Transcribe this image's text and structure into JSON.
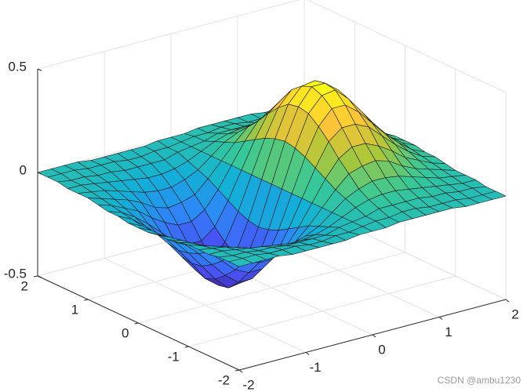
{
  "chart_data": {
    "type": "surface",
    "x": [
      -2,
      -1.8,
      -1.6,
      -1.4,
      -1.2,
      -1,
      -0.8,
      -0.6,
      -0.4,
      -0.2,
      0,
      0.2,
      0.4,
      0.6,
      0.8,
      1,
      1.2,
      1.4,
      1.6,
      1.8,
      2
    ],
    "y": [
      -2,
      -1.8,
      -1.6,
      -1.4,
      -1.2,
      -1,
      -0.8,
      -0.6,
      -0.4,
      -0.2,
      0,
      0.2,
      0.4,
      0.6,
      0.8,
      1,
      1.2,
      1.4,
      1.6,
      1.8,
      2
    ],
    "z": [
      [
        0,
        0,
        0,
        0,
        -0.01,
        -0.01,
        -0.01,
        -0.01,
        -0.01,
        0,
        0,
        0,
        0.01,
        0.01,
        0.01,
        0.01,
        0.01,
        0,
        0,
        0,
        0
      ],
      [
        0,
        0,
        0,
        -0.01,
        -0.01,
        -0.01,
        -0.02,
        -0.02,
        -0.01,
        -0.01,
        0,
        0.01,
        0.01,
        0.02,
        0.02,
        0.01,
        0.01,
        0.01,
        0,
        0,
        0
      ],
      [
        0,
        -0.01,
        -0.01,
        -0.02,
        -0.02,
        -0.03,
        -0.03,
        -0.03,
        -0.03,
        -0.01,
        0,
        0.01,
        0.03,
        0.03,
        0.03,
        0.03,
        0.02,
        0.02,
        0.01,
        0.01,
        0
      ],
      [
        -0.01,
        -0.01,
        -0.02,
        -0.03,
        -0.04,
        -0.05,
        -0.06,
        -0.06,
        -0.05,
        -0.03,
        0,
        0.03,
        0.05,
        0.06,
        0.06,
        0.05,
        0.04,
        0.03,
        0.02,
        0.01,
        0.01
      ],
      [
        -0.01,
        -0.02,
        -0.03,
        -0.05,
        -0.07,
        -0.09,
        -0.1,
        -0.1,
        -0.08,
        -0.05,
        0,
        0.05,
        0.08,
        0.1,
        0.1,
        0.09,
        0.07,
        0.05,
        0.03,
        0.02,
        0.01
      ],
      [
        -0.01,
        -0.03,
        -0.05,
        -0.07,
        -0.1,
        -0.14,
        -0.16,
        -0.15,
        -0.13,
        -0.07,
        0,
        0.07,
        0.13,
        0.15,
        0.16,
        0.14,
        0.1,
        0.07,
        0.05,
        0.03,
        0.01
      ],
      [
        -0.02,
        -0.04,
        -0.07,
        -0.1,
        -0.15,
        -0.19,
        -0.22,
        -0.22,
        -0.18,
        -0.1,
        0,
        0.1,
        0.18,
        0.22,
        0.22,
        0.19,
        0.15,
        0.1,
        0.07,
        0.04,
        0.02
      ],
      [
        -0.03,
        -0.05,
        -0.09,
        -0.14,
        -0.2,
        -0.26,
        -0.29,
        -0.29,
        -0.24,
        -0.13,
        0,
        0.13,
        0.24,
        0.29,
        0.29,
        0.26,
        0.2,
        0.14,
        0.09,
        0.05,
        0.03
      ],
      [
        -0.03,
        -0.06,
        -0.11,
        -0.17,
        -0.24,
        -0.31,
        -0.36,
        -0.36,
        -0.29,
        -0.16,
        0,
        0.16,
        0.29,
        0.36,
        0.36,
        0.31,
        0.24,
        0.17,
        0.11,
        0.06,
        0.03
      ],
      [
        -0.04,
        -0.07,
        -0.12,
        -0.19,
        -0.27,
        -0.35,
        -0.41,
        -0.4,
        -0.33,
        -0.18,
        0,
        0.18,
        0.33,
        0.4,
        0.41,
        0.35,
        0.27,
        0.19,
        0.12,
        0.07,
        0.04
      ],
      [
        -0.04,
        -0.07,
        -0.12,
        -0.2,
        -0.28,
        -0.37,
        -0.42,
        -0.42,
        -0.34,
        -0.19,
        0,
        0.19,
        0.34,
        0.42,
        0.42,
        0.37,
        0.28,
        0.2,
        0.12,
        0.07,
        0.04
      ],
      [
        -0.04,
        -0.07,
        -0.12,
        -0.19,
        -0.27,
        -0.35,
        -0.41,
        -0.4,
        -0.33,
        -0.18,
        0,
        0.18,
        0.33,
        0.4,
        0.41,
        0.35,
        0.27,
        0.19,
        0.12,
        0.07,
        0.04
      ],
      [
        -0.03,
        -0.06,
        -0.11,
        -0.17,
        -0.24,
        -0.31,
        -0.36,
        -0.36,
        -0.29,
        -0.16,
        0,
        0.16,
        0.29,
        0.36,
        0.36,
        0.31,
        0.24,
        0.17,
        0.11,
        0.06,
        0.03
      ],
      [
        -0.03,
        -0.05,
        -0.09,
        -0.14,
        -0.2,
        -0.26,
        -0.29,
        -0.29,
        -0.24,
        -0.13,
        0,
        0.13,
        0.24,
        0.29,
        0.29,
        0.26,
        0.2,
        0.14,
        0.09,
        0.05,
        0.03
      ],
      [
        -0.02,
        -0.04,
        -0.07,
        -0.1,
        -0.15,
        -0.19,
        -0.22,
        -0.22,
        -0.18,
        -0.1,
        0,
        0.1,
        0.18,
        0.22,
        0.22,
        0.19,
        0.15,
        0.1,
        0.07,
        0.04,
        0.02
      ],
      [
        -0.01,
        -0.03,
        -0.05,
        -0.07,
        -0.1,
        -0.14,
        -0.16,
        -0.15,
        -0.13,
        -0.07,
        0,
        0.07,
        0.13,
        0.15,
        0.16,
        0.14,
        0.1,
        0.07,
        0.05,
        0.03,
        0.01
      ],
      [
        -0.01,
        -0.02,
        -0.03,
        -0.05,
        -0.07,
        -0.09,
        -0.1,
        -0.1,
        -0.08,
        -0.05,
        0,
        0.05,
        0.08,
        0.1,
        0.1,
        0.09,
        0.07,
        0.05,
        0.03,
        0.02,
        0.01
      ],
      [
        -0.01,
        -0.01,
        -0.02,
        -0.03,
        -0.04,
        -0.05,
        -0.06,
        -0.06,
        -0.05,
        -0.03,
        0,
        0.03,
        0.05,
        0.06,
        0.06,
        0.05,
        0.04,
        0.03,
        0.02,
        0.01,
        0.01
      ],
      [
        0,
        -0.01,
        -0.01,
        -0.02,
        -0.02,
        -0.03,
        -0.03,
        -0.03,
        -0.03,
        -0.01,
        0,
        0.01,
        0.03,
        0.03,
        0.03,
        0.03,
        0.02,
        0.02,
        0.01,
        0.01,
        0
      ],
      [
        0,
        0,
        0,
        -0.01,
        -0.01,
        -0.01,
        -0.02,
        -0.02,
        -0.01,
        -0.01,
        0,
        0.01,
        0.01,
        0.02,
        0.02,
        0.01,
        0.01,
        0.01,
        0,
        0,
        0
      ],
      [
        0,
        0,
        0,
        0,
        -0.01,
        -0.01,
        -0.01,
        -0.01,
        -0.01,
        0,
        0,
        0,
        0.01,
        0.01,
        0.01,
        0.01,
        0.01,
        0,
        0,
        0,
        0
      ]
    ],
    "xlim": [
      -2,
      2
    ],
    "ylim": [
      -2,
      2
    ],
    "zlim": [
      -0.5,
      0.5
    ],
    "xticks": [
      -2,
      -1,
      0,
      1,
      2
    ],
    "yticks": [
      -2,
      -1,
      0,
      1,
      2
    ],
    "zticks": [
      -0.5,
      0,
      0.5
    ],
    "grid": true,
    "colormap": [
      "#3e26a8",
      "#4852f4",
      "#2d87f7",
      "#12b1d6",
      "#37c897",
      "#abc739",
      "#fec338",
      "#f9fb15"
    ],
    "edge_color": "#1a1a1a",
    "watermark": "CSDN @ambu1230"
  }
}
